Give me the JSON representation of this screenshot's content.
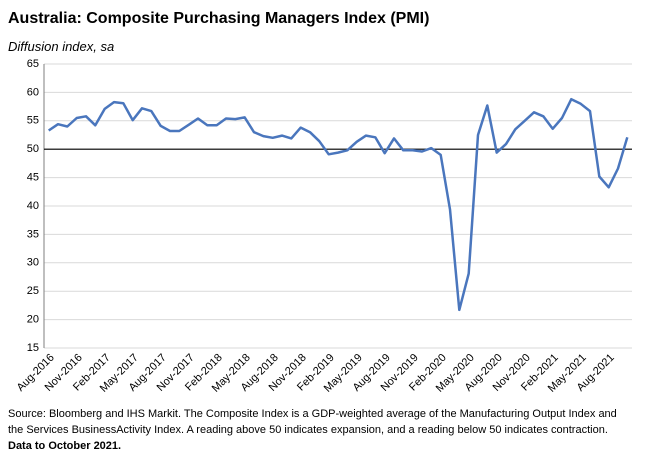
{
  "chart_data": {
    "type": "line",
    "title": "Australia:  Composite Purchasing Managers Index (PMI)",
    "subtitle": "Diffusion index, sa",
    "categories": [
      "Aug-2016",
      null,
      null,
      "Nov-2016",
      null,
      null,
      "Feb-2017",
      null,
      null,
      "May-2017",
      null,
      null,
      "Aug-2017",
      null,
      null,
      "Nov-2017",
      null,
      null,
      "Feb-2018",
      null,
      null,
      "May-2018",
      null,
      null,
      "Aug-2018",
      null,
      null,
      "Nov-2018",
      null,
      null,
      "Feb-2019",
      null,
      null,
      "May-2019",
      null,
      null,
      "Aug-2019",
      null,
      null,
      "Nov-2019",
      null,
      null,
      "Feb-2020",
      null,
      null,
      "May-2020",
      null,
      null,
      "Aug-2020",
      null,
      null,
      "Nov-2020",
      null,
      null,
      "Feb-2021",
      null,
      null,
      "May-2021",
      null,
      null,
      "Aug-2021",
      null,
      null
    ],
    "series": [
      {
        "name": "Composite PMI",
        "color": "#4a76bd",
        "values": [
          53.3,
          54.4,
          54.0,
          55.5,
          55.8,
          54.2,
          57.1,
          58.3,
          58.1,
          55.1,
          57.2,
          56.7,
          54.1,
          53.2,
          53.2,
          54.3,
          55.4,
          54.2,
          54.2,
          55.4,
          55.3,
          55.6,
          53.0,
          52.3,
          52.0,
          52.4,
          51.9,
          53.8,
          53.0,
          51.4,
          49.1,
          49.4,
          49.8,
          51.3,
          52.4,
          52.1,
          49.3,
          51.9,
          49.8,
          49.8,
          49.6,
          50.2,
          49.0,
          39.4,
          21.7,
          28.1,
          52.5,
          57.7,
          49.4,
          50.9,
          53.5,
          55.0,
          56.5,
          55.8,
          53.6,
          55.5,
          58.8,
          58.0,
          56.7,
          45.2,
          43.3,
          46.6,
          52.1
        ]
      }
    ],
    "ylim": [
      15,
      65
    ],
    "yticks": [
      15,
      20,
      25,
      30,
      35,
      40,
      45,
      50,
      55,
      60,
      65
    ],
    "grid": true,
    "x_axis_crosses": 50,
    "footnote": [
      "Source: Bloomberg and IHS Markit. The Composite Index is a GDP-weighted average of the Manufacturing Output Index and",
      "the Services BusinessActivity Index.  A reading above 50 indicates expansion, and a reading below 50 indicates contraction."
    ],
    "data_note": "Data to October 2021."
  }
}
